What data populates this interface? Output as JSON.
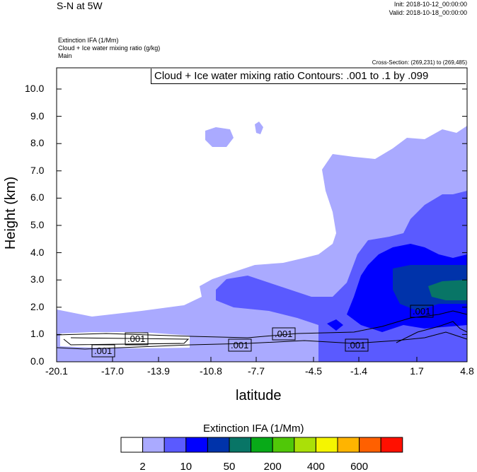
{
  "header": {
    "title": "S-N at 5W",
    "init": "Init: 2018-10-12_00:00:00",
    "valid": "Valid: 2018-10-18_00:00:00",
    "field1": "Extinction IFA   (1/Mm)",
    "field2": "Cloud + Ice water mixing ratio   (g/kg)",
    "field3": "Main",
    "cross_section": "Cross-Section: (269,231) to (269,485)"
  },
  "chart_data": {
    "type": "heatmap",
    "title": "S-N at 5W",
    "xlabel": "latitude",
    "ylabel": "Height (km)",
    "xticks": [
      "-20.1",
      "-17.0",
      "-13.9",
      "-10.8",
      "-7.7",
      "-4.5",
      "-1.4",
      "1.7",
      "4.8"
    ],
    "yticks": [
      "0.0",
      "1.0",
      "2.0",
      "3.0",
      "4.0",
      "5.0",
      "6.0",
      "7.0",
      "8.0",
      "9.0",
      "10.0"
    ],
    "xlim": [
      -20.1,
      4.8
    ],
    "ylim": [
      0,
      10.8
    ],
    "contour_info": "Cloud + Ice water mixing ratio Contours: .001 to .1 by .099",
    "contour_labels": [
      ".001",
      ".001",
      ".001",
      ".001",
      ".001",
      ".001"
    ],
    "colorbar": {
      "title": "Extinction IFA  (1/Mm)",
      "colors": [
        "#ffffff",
        "#aaaaff",
        "#5a5aff",
        "#0000ff",
        "#0033aa",
        "#087566",
        "#08aa18",
        "#50c808",
        "#aae008",
        "#f5f500",
        "#ffb400",
        "#ff6000",
        "#ff1000"
      ],
      "labels": [
        "2",
        "10",
        "50",
        "200",
        "400",
        "600"
      ]
    }
  }
}
